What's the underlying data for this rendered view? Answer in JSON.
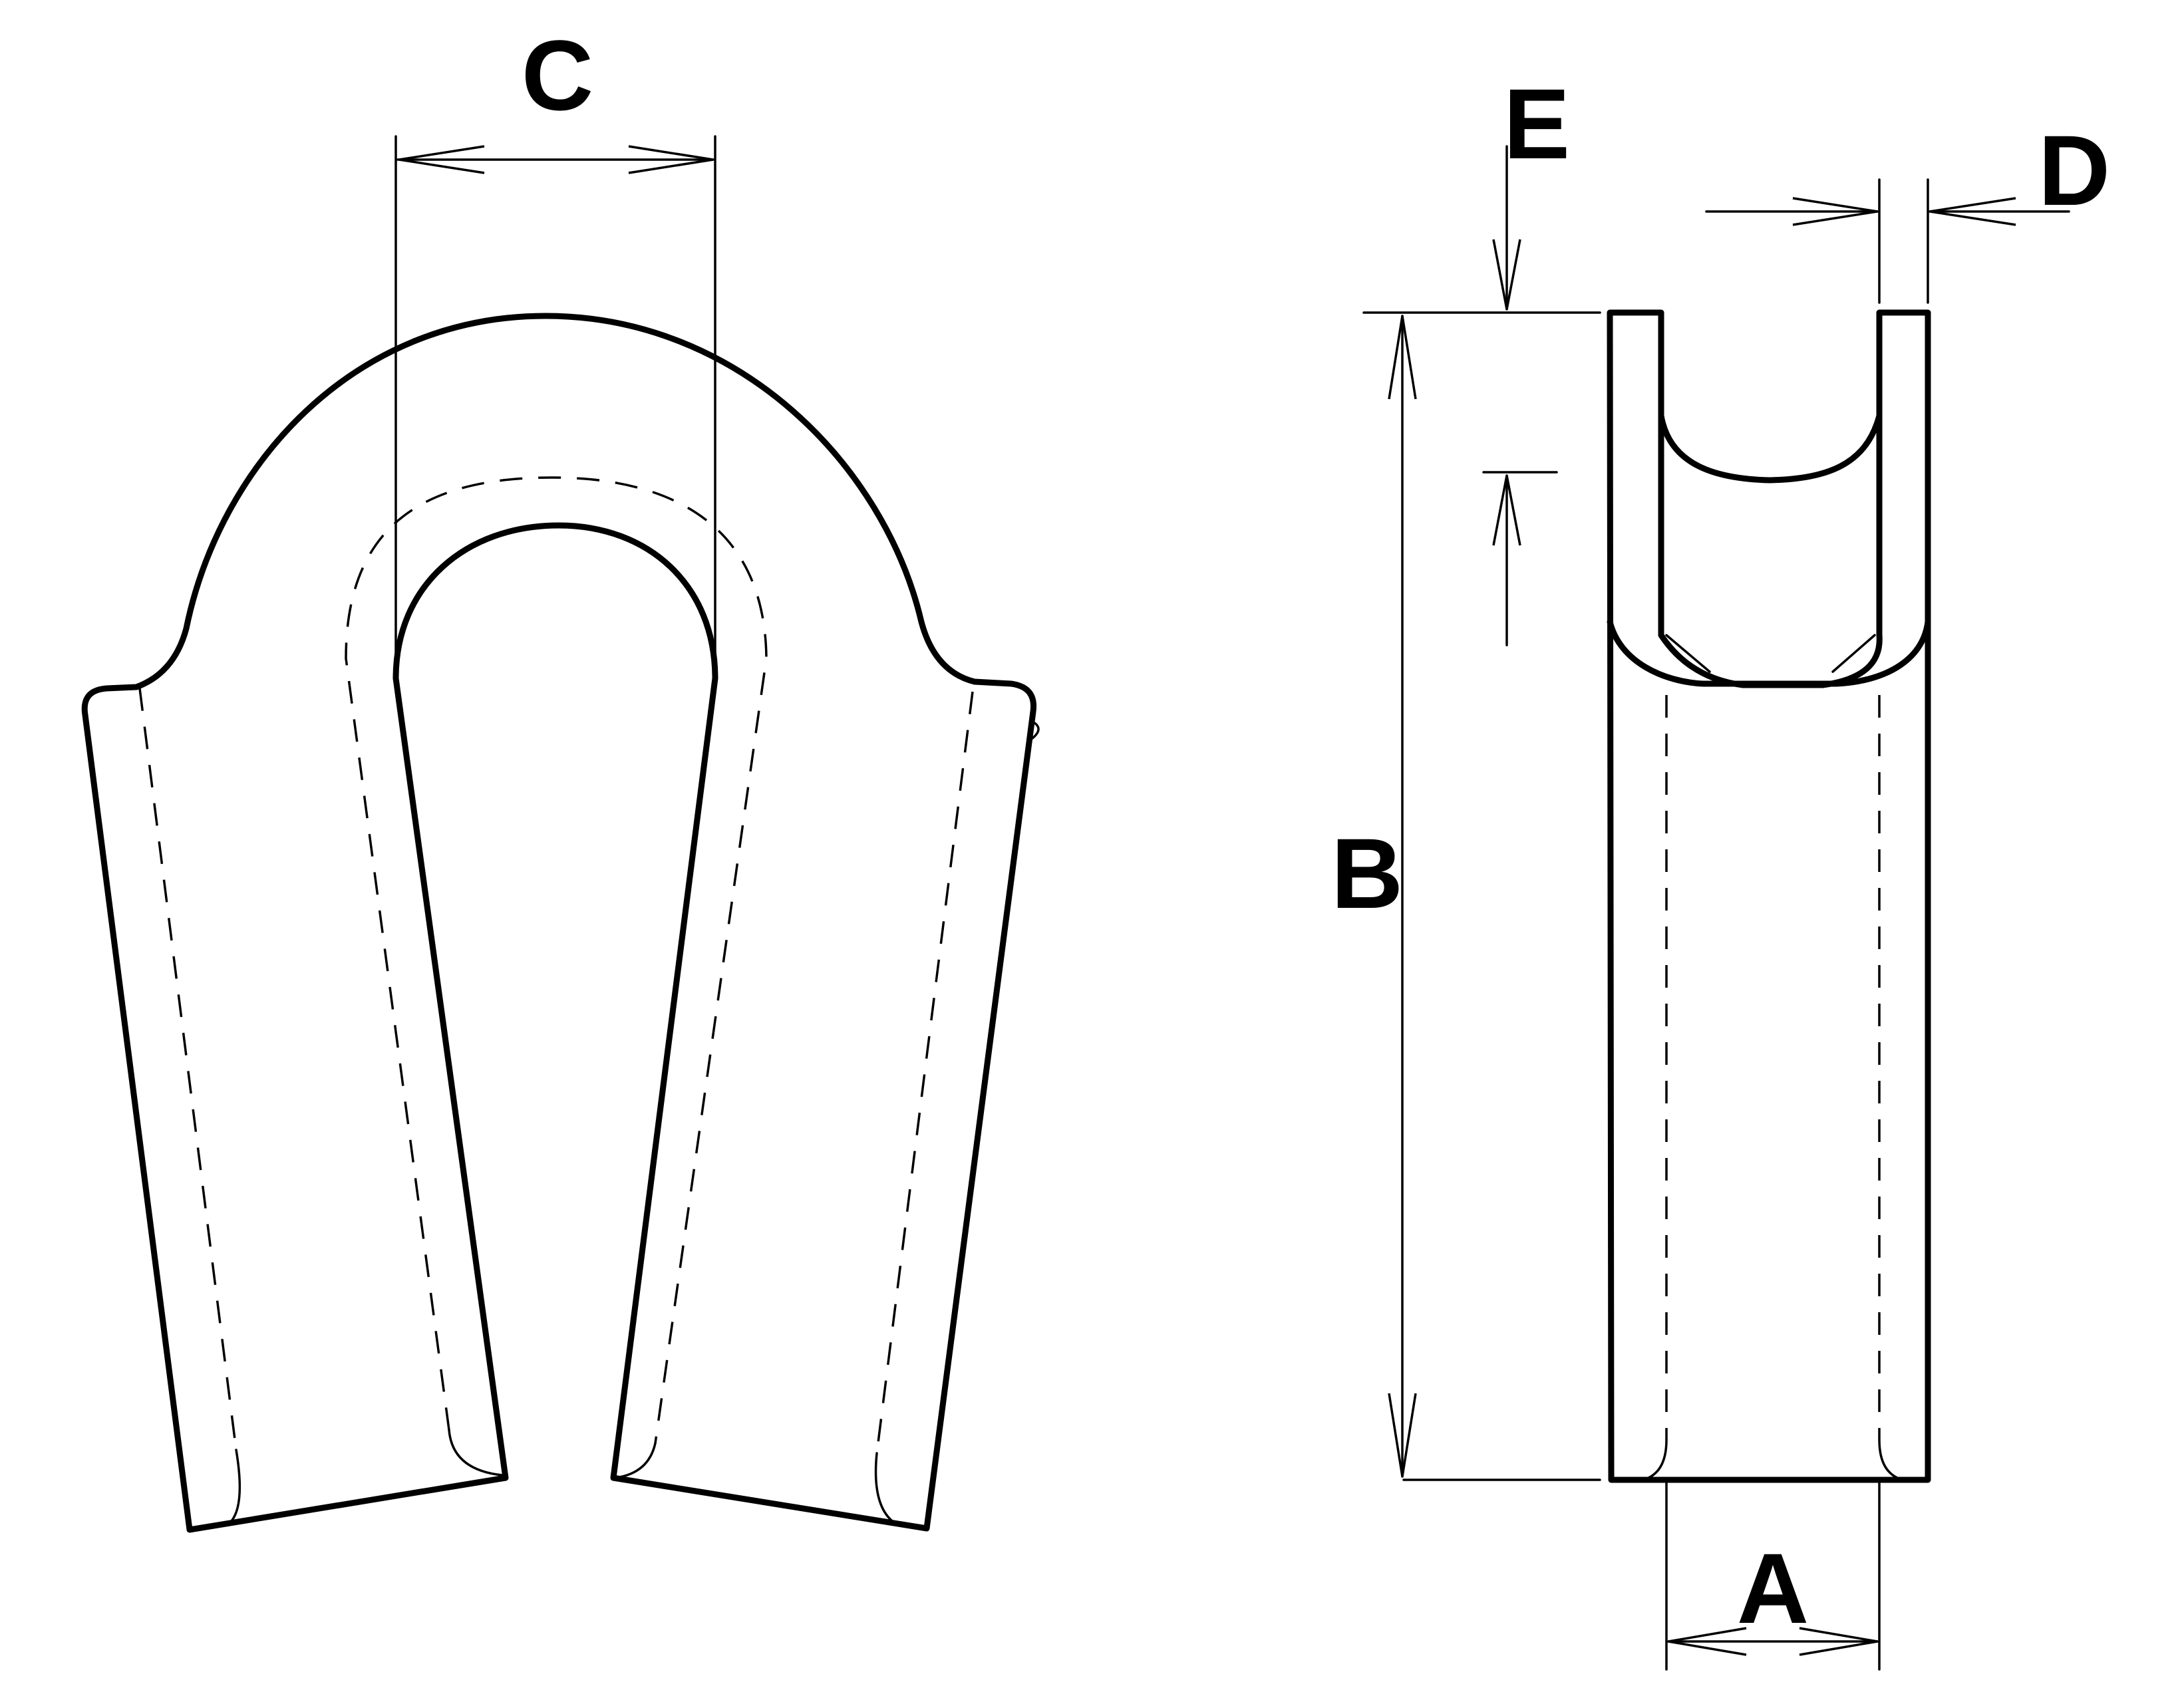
{
  "labels": {
    "a": "A",
    "b": "B",
    "c": "C",
    "d": "D",
    "e": "E"
  },
  "colors": {
    "line": "#000000",
    "background": "#ffffff"
  }
}
